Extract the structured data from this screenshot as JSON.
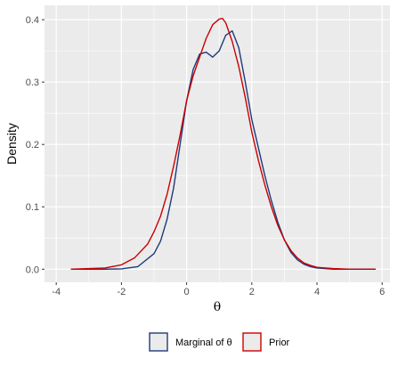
{
  "chart_data": {
    "type": "line",
    "xlabel": "θ",
    "ylabel": "Density",
    "xlim": [
      -4,
      6
    ],
    "ylim": [
      0,
      0.42
    ],
    "x_ticks": [
      -4,
      -2,
      0,
      2,
      4,
      6
    ],
    "x_tick_labels": [
      "-4",
      "-2",
      "0",
      "2",
      "4",
      "6"
    ],
    "y_ticks": [
      0.0,
      0.1,
      0.2,
      0.3,
      0.4
    ],
    "y_tick_labels": [
      "0.0",
      "0.1",
      "0.2",
      "0.3",
      "0.4"
    ],
    "grid": true,
    "legend_position": "bottom",
    "colors": {
      "panel_bg": "#ebebeb",
      "grid": "#ffffff"
    },
    "series": [
      {
        "name": "Marginal of θ",
        "color": "#1f3a7a",
        "x": [
          -3.55,
          -2.5,
          -2.0,
          -1.5,
          -1.0,
          -0.8,
          -0.6,
          -0.4,
          -0.2,
          0.0,
          0.2,
          0.4,
          0.6,
          0.8,
          1.0,
          1.2,
          1.4,
          1.6,
          1.8,
          2.0,
          2.2,
          2.4,
          2.6,
          2.8,
          3.0,
          3.2,
          3.4,
          3.6,
          3.8,
          4.0,
          4.5,
          5.0,
          5.8
        ],
        "y": [
          0.0,
          0.0,
          0.0005,
          0.004,
          0.025,
          0.045,
          0.08,
          0.13,
          0.2,
          0.27,
          0.32,
          0.345,
          0.348,
          0.34,
          0.35,
          0.375,
          0.382,
          0.355,
          0.3,
          0.24,
          0.195,
          0.15,
          0.11,
          0.075,
          0.047,
          0.027,
          0.015,
          0.008,
          0.004,
          0.002,
          0.0,
          0.0,
          0.0
        ]
      },
      {
        "name": "Prior",
        "color": "#cc0000",
        "x": [
          -3.55,
          -3.0,
          -2.5,
          -2.0,
          -1.6,
          -1.2,
          -1.0,
          -0.8,
          -0.6,
          -0.4,
          -0.2,
          0.0,
          0.2,
          0.4,
          0.6,
          0.8,
          1.0,
          1.1,
          1.2,
          1.4,
          1.6,
          1.8,
          2.0,
          2.2,
          2.4,
          2.6,
          2.8,
          3.0,
          3.2,
          3.4,
          3.6,
          3.8,
          4.0,
          4.5,
          5.0,
          5.8
        ],
        "y": [
          0.0,
          0.001,
          0.002,
          0.007,
          0.018,
          0.04,
          0.06,
          0.085,
          0.12,
          0.165,
          0.215,
          0.27,
          0.31,
          0.34,
          0.37,
          0.392,
          0.401,
          0.402,
          0.395,
          0.365,
          0.325,
          0.275,
          0.22,
          0.175,
          0.135,
          0.1,
          0.07,
          0.047,
          0.03,
          0.018,
          0.01,
          0.006,
          0.003,
          0.001,
          0.0,
          0.0
        ]
      }
    ]
  }
}
